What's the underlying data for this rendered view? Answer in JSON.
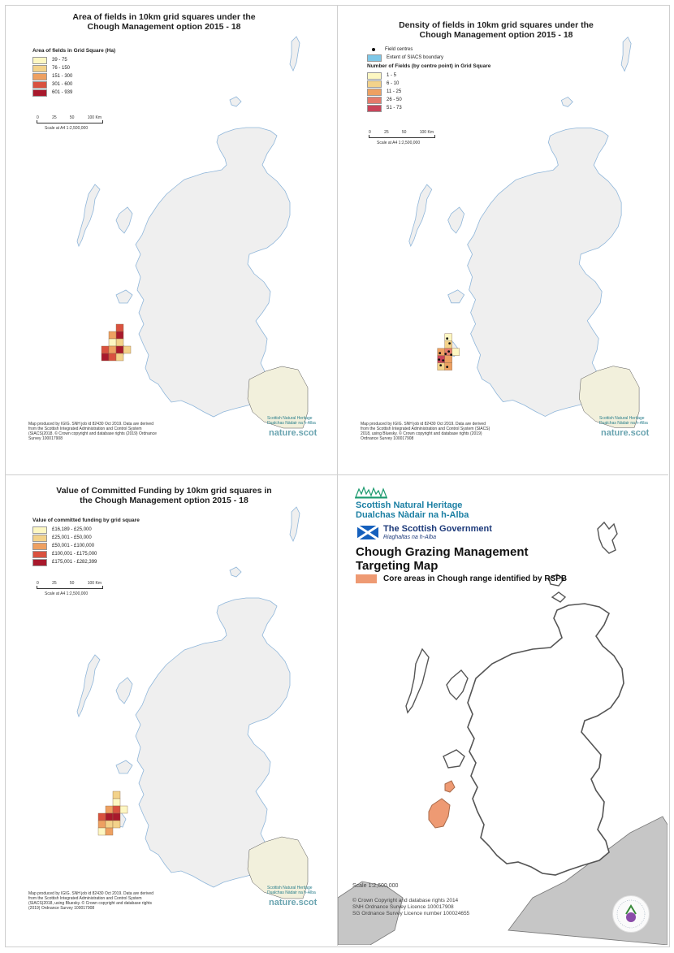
{
  "panels": {
    "area": {
      "title_line1": "Area of fields in 10km grid squares under the",
      "title_line2": "Chough Management option 2015 - 18",
      "legend_title": "Area of fields in Grid Square (Ha)",
      "classes": [
        {
          "label": "39 - 75",
          "color": "#fdf7c2"
        },
        {
          "label": "76 - 150",
          "color": "#f3d28a"
        },
        {
          "label": "151 - 300",
          "color": "#eea061"
        },
        {
          "label": "301 - 600",
          "color": "#d9513f"
        },
        {
          "label": "601 - 939",
          "color": "#a8192c"
        }
      ],
      "scale_ticks": [
        "0",
        "25",
        "50",
        "100 Km"
      ],
      "scale_text": "Scale at A4 1:2,500,000",
      "credits": "Map produced by IGIG. SNH job id 82430 Oct 2019. Data are derived from the Scottish Integrated Administration and Control System (SIACS)2018. © Crown copyright and database rights (2019) Ordnance Survey 100017908",
      "snh_line1": "Scottish Natural Heritage",
      "snh_line2": "Dualchas Nàdair na h-Alba",
      "naturescot": "nature.scot"
    },
    "density": {
      "title_line1": "Density of fields in 10km grid squares under the",
      "title_line2": "Chough Management option 2015 - 18",
      "point_label": "Field centres",
      "boundary_label": "Extent of SIACS boundary",
      "boundary_color": "#7fc8e8",
      "legend_title": "Number of Fields (by centre point) in Grid Square",
      "classes": [
        {
          "label": "1 - 5",
          "color": "#fdf7c2"
        },
        {
          "label": "6 - 10",
          "color": "#f3d28a"
        },
        {
          "label": "11 - 25",
          "color": "#eea061"
        },
        {
          "label": "26 - 50",
          "color": "#e47a6b"
        },
        {
          "label": "51 - 73",
          "color": "#c9445a"
        }
      ],
      "scale_ticks": [
        "0",
        "25",
        "50",
        "100 Km"
      ],
      "scale_text": "Scale at A4 1:2,500,000",
      "credits": "Map produced by IGIG. SNH job id 82430 Oct 2019. Data are derived from the Scottish Integrated Administration and Control System (SIACS) 2018, using Bluesky. © Crown copyright and database rights (2019) Ordnance Survey 100017908",
      "snh_line1": "Scottish Natural Heritage",
      "snh_line2": "Dualchas Nàdair na h-Alba",
      "naturescot": "nature.scot"
    },
    "funding": {
      "title_line1": "Value of Committed Funding by 10km grid squares in",
      "title_line2": "the Chough Management option 2015 - 18",
      "legend_title": "Value of committed funding by grid square",
      "classes": [
        {
          "label": "£16,189 - £25,000",
          "color": "#fdf7c2"
        },
        {
          "label": "£25,001 - £50,000",
          "color": "#f3d28a"
        },
        {
          "label": "£50,001 - £100,000",
          "color": "#eea061"
        },
        {
          "label": "£100,001 - £175,000",
          "color": "#d9513f"
        },
        {
          "label": "£175,001 - £282,399",
          "color": "#a8192c"
        }
      ],
      "scale_ticks": [
        "0",
        "25",
        "50",
        "100 Km"
      ],
      "scale_text": "Scale at A4 1:2,500,000",
      "credits": "Map produced by IGIG. SNH job id 82430 Oct 2019. Data are derived from the Scottish Integrated Administration and Control System (SIACS)2018, using Bluesky. © Crown copyright and database rights (2019) Ordnance Survey 100017908",
      "snh_line1": "Scottish Natural Heritage",
      "snh_line2": "Dualchas Nàdair na h-Alba",
      "naturescot": "nature.scot"
    },
    "targeting": {
      "snh_line1": "Scottish Natural Heritage",
      "snh_line2": "Dualchas Nàdair na h-Alba",
      "gov_name": "The Scottish Government",
      "gov_gaelic": "Riaghaltas na h-Alba",
      "title_line1": "Chough Grazing Management",
      "title_line2": "Targeting Map",
      "core_label": "Core areas in Chough range identified by RSPB",
      "core_color": "#ee9a73",
      "scale_text": "Scale  1:2,600,000",
      "copyright1": "© Crown Copyright and database rights 2014",
      "copyright2": "SNH Ordnance Survey Licence 100017908",
      "copyright3": "SG Ordnance Survey Licence number 100024655"
    }
  },
  "colors": {
    "land": "#efefef",
    "coast": "#8fb6da",
    "england": "#f2f0dc",
    "grey_land": "#c6c6c6"
  }
}
